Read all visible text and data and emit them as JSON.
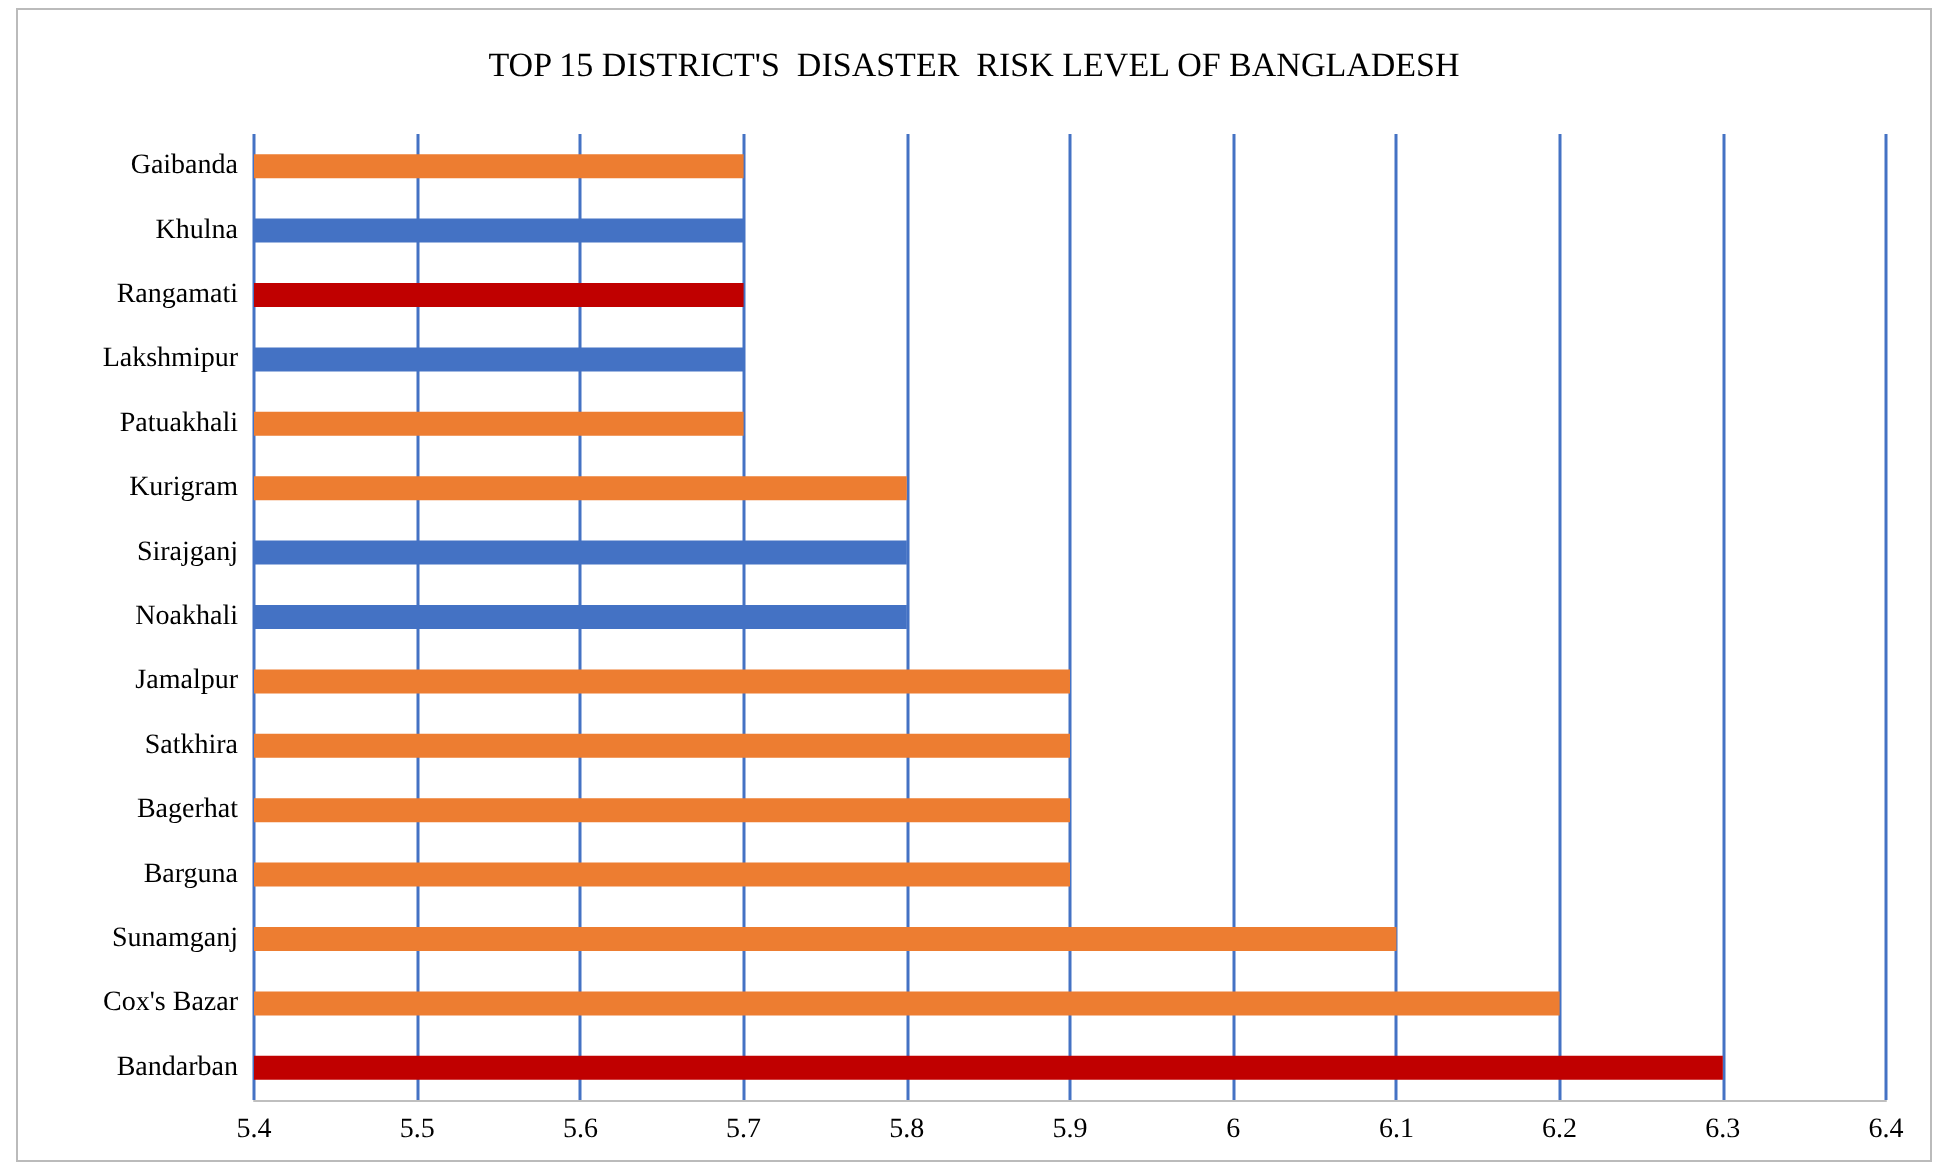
{
  "chart_data": {
    "type": "bar",
    "orientation": "horizontal",
    "title": "TOP 15 DISTRICT'S  DISASTER  RISK LEVEL OF BANGLADESH",
    "categories": [
      "Gaibanda",
      "Khulna",
      "Rangamati",
      "Lakshmipur",
      "Patuakhali",
      "Kurigram",
      "Sirajganj",
      "Noakhali",
      "Jamalpur",
      "Satkhira",
      "Bagerhat",
      "Barguna",
      "Sunamganj",
      "Cox's Bazar",
      "Bandarban"
    ],
    "values": [
      5.7,
      5.7,
      5.7,
      5.7,
      5.7,
      5.8,
      5.8,
      5.8,
      5.9,
      5.9,
      5.9,
      5.9,
      6.1,
      6.2,
      6.3
    ],
    "colors": [
      "#ed7d31",
      "#4472c4",
      "#c00000",
      "#4472c4",
      "#ed7d31",
      "#ed7d31",
      "#4472c4",
      "#4472c4",
      "#ed7d31",
      "#ed7d31",
      "#ed7d31",
      "#ed7d31",
      "#ed7d31",
      "#ed7d31",
      "#c00000"
    ],
    "xlim": [
      5.4,
      6.4
    ],
    "xticks": [
      5.4,
      5.5,
      5.6,
      5.7,
      5.8,
      5.9,
      6,
      6.1,
      6.2,
      6.3,
      6.4
    ],
    "grid": "x"
  }
}
